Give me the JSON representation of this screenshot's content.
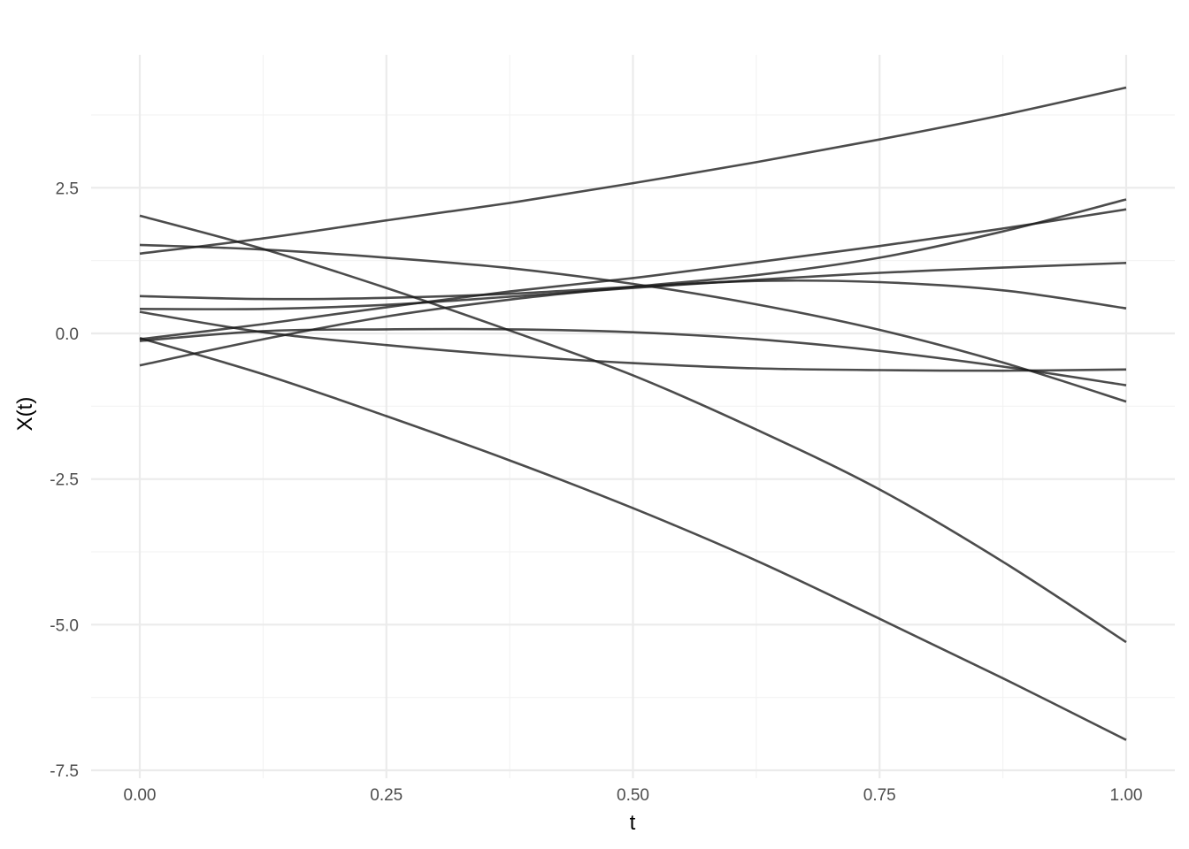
{
  "chart_data": {
    "type": "line",
    "title": "",
    "xlabel": "t",
    "ylabel": "X(t)",
    "xlim": [
      -0.1,
      1.05
    ],
    "ylim": [
      -7.6,
      4.9
    ],
    "x_ticks": [
      0,
      0.25,
      0.5,
      0.75,
      1
    ],
    "x_tick_labels": [
      "0.00",
      "0.25",
      "0.50",
      "0.75",
      "1.00"
    ],
    "y_ticks": [
      -7.5,
      -5,
      -2.5,
      0,
      2.5
    ],
    "y_tick_labels": [
      "-7.5",
      "-5.0",
      "-2.5",
      "0.0",
      "2.5"
    ],
    "grid": true,
    "line_color": "#1a1a1a",
    "x": [
      0,
      0.125,
      0.25,
      0.375,
      0.5,
      0.625,
      0.75,
      0.875,
      1
    ],
    "series": [
      {
        "values": [
          1.37,
          1.63,
          1.94,
          2.24,
          2.58,
          2.94,
          3.33,
          3.75,
          4.22
        ]
      },
      {
        "values": [
          2.02,
          1.45,
          0.78,
          0.05,
          -0.72,
          -1.65,
          -2.68,
          -3.92,
          -5.3
        ]
      },
      {
        "values": [
          -0.08,
          -0.7,
          -1.42,
          -2.18,
          -3.0,
          -3.9,
          -4.9,
          -5.92,
          -6.98
        ]
      },
      {
        "values": [
          1.52,
          1.44,
          1.3,
          1.12,
          0.85,
          0.5,
          0.06,
          -0.5,
          -1.17
        ]
      },
      {
        "values": [
          0.64,
          0.59,
          0.61,
          0.68,
          0.8,
          0.9,
          0.88,
          0.74,
          0.43
        ]
      },
      {
        "values": [
          -0.1,
          0.16,
          0.45,
          0.72,
          0.95,
          1.22,
          1.5,
          1.8,
          2.13
        ]
      },
      {
        "values": [
          -0.55,
          -0.1,
          0.29,
          0.58,
          0.8,
          1.0,
          1.3,
          1.75,
          2.3
        ]
      },
      {
        "values": [
          0.42,
          0.42,
          0.49,
          0.63,
          0.78,
          0.92,
          1.04,
          1.13,
          1.21
        ]
      },
      {
        "values": [
          0.37,
          0.02,
          -0.2,
          -0.38,
          -0.51,
          -0.6,
          -0.63,
          -0.64,
          -0.62
        ]
      },
      {
        "values": [
          -0.13,
          0.04,
          0.07,
          0.07,
          0.02,
          -0.1,
          -0.3,
          -0.57,
          -0.89
        ]
      }
    ]
  }
}
